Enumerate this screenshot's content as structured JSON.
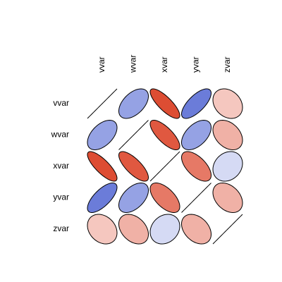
{
  "chart_data": {
    "type": "correlation-ellipse",
    "categories": [
      "vvar",
      "wvar",
      "xvar",
      "yvar",
      "zvar"
    ],
    "values": [
      [
        1,
        0.5,
        -0.8,
        0.7,
        -0.25
      ],
      [
        0.5,
        1,
        -0.75,
        0.5,
        -0.35
      ],
      [
        -0.8,
        -0.75,
        1,
        -0.6,
        0.2
      ],
      [
        0.7,
        0.5,
        -0.6,
        1,
        -0.35
      ],
      [
        -0.25,
        -0.35,
        0.2,
        -0.35,
        1
      ]
    ],
    "positive_color": "#2b44c8",
    "negative_color": "#d52000"
  }
}
